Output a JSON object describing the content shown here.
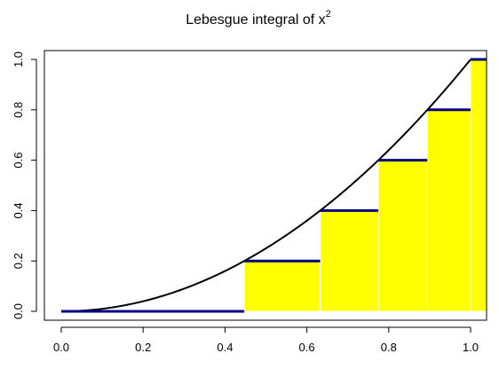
{
  "chart_data": {
    "type": "area",
    "title": "Lebesgue integral of x",
    "title_superscript": "2",
    "xlabel": "",
    "ylabel": "",
    "xlim": [
      0.0,
      1.0
    ],
    "ylim": [
      0.0,
      1.0
    ],
    "x_ticks": [
      "0.0",
      "0.2",
      "0.4",
      "0.6",
      "0.8",
      "1.0"
    ],
    "y_ticks": [
      "0.0",
      "0.2",
      "0.4",
      "0.6",
      "0.8",
      "1.0"
    ],
    "grid": false,
    "legend": "none",
    "curve": {
      "function": "x^2",
      "x_range": [
        0.0,
        1.0
      ],
      "color": "#000000"
    },
    "levels": [
      0.0,
      0.2,
      0.4,
      0.6,
      0.8,
      1.0
    ],
    "bars": [
      {
        "x_start": 0.4472,
        "x_end": 1.0,
        "y": 0.2
      },
      {
        "x_start": 0.6325,
        "x_end": 1.0,
        "y": 0.4
      },
      {
        "x_start": 0.7746,
        "x_end": 1.0,
        "y": 0.6
      },
      {
        "x_start": 0.8944,
        "x_end": 1.0,
        "y": 0.8
      },
      {
        "x_start": 1.0,
        "x_end": 1.04,
        "y": 1.0
      }
    ],
    "level_lines": [
      {
        "x_start": 0.0,
        "x_end": 0.4472,
        "y": 0.0
      },
      {
        "x_start": 0.4472,
        "x_end": 0.6325,
        "y": 0.2
      },
      {
        "x_start": 0.6325,
        "x_end": 0.7746,
        "y": 0.4
      },
      {
        "x_start": 0.7746,
        "x_end": 0.8944,
        "y": 0.6
      },
      {
        "x_start": 0.8944,
        "x_end": 1.0,
        "y": 0.8
      },
      {
        "x_start": 1.0,
        "x_end": 1.04,
        "y": 1.0
      }
    ],
    "colors": {
      "fill": "#ffff00",
      "level_line": "#000080",
      "curve": "#000000",
      "bar_border": "#ffffff"
    }
  }
}
